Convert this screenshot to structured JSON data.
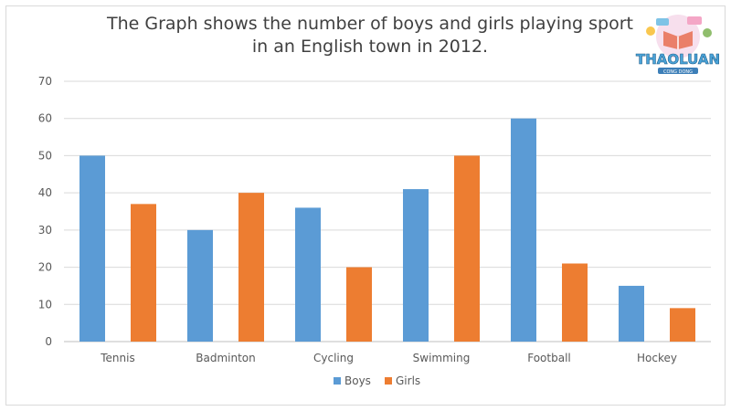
{
  "chart_data": {
    "type": "bar",
    "title": "The Graph shows the number of boys and girls playing sport in an English town in 2012.",
    "categories": [
      "Tennis",
      "Badminton",
      "Cycling",
      "Swimming",
      "Football",
      "Hockey"
    ],
    "series": [
      {
        "name": "Boys",
        "color": "#5b9bd5",
        "values": [
          50,
          30,
          36,
          41,
          60,
          15
        ]
      },
      {
        "name": "Girls",
        "color": "#ed7d31",
        "values": [
          37,
          40,
          20,
          50,
          21,
          9
        ]
      }
    ],
    "ylim": [
      0,
      70
    ],
    "yticks": [
      0,
      10,
      20,
      30,
      40,
      50,
      60,
      70
    ],
    "grid": true,
    "legend_position": "bottom"
  },
  "watermark": {
    "text": "THAOLUAN",
    "subtext": "CONG DONG"
  }
}
